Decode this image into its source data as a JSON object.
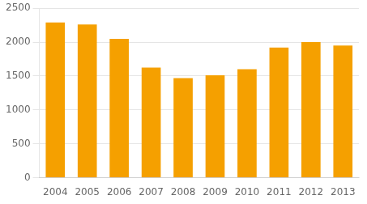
{
  "chart_data": {
    "type": "bar",
    "categories": [
      "2004",
      "2005",
      "2006",
      "2007",
      "2008",
      "2009",
      "2010",
      "2011",
      "2012",
      "2013"
    ],
    "values": [
      2290,
      2260,
      2050,
      1625,
      1470,
      1510,
      1600,
      1920,
      2000,
      1950
    ],
    "color": "#F5A000",
    "ylim": [
      0,
      2500
    ],
    "yticks": [
      0,
      500,
      1000,
      1500,
      2000,
      2500
    ],
    "grid": true
  }
}
